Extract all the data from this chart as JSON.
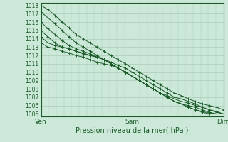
{
  "title": "Pression niveau de la mer( hPa )",
  "bg_color": "#cce8d8",
  "grid_color": "#aaccb8",
  "line_color": "#1a5c28",
  "ylim": [
    1005,
    1018
  ],
  "yticks": [
    1005,
    1006,
    1007,
    1008,
    1009,
    1010,
    1011,
    1012,
    1013,
    1014,
    1015,
    1016,
    1017,
    1018
  ],
  "xlim": [
    0,
    48
  ],
  "xtick_positions": [
    0,
    24,
    48
  ],
  "xtick_labels": [
    "Ven",
    "Sam",
    "Dim"
  ],
  "lines": [
    [
      1018.0,
      1017.5,
      1016.8,
      1016.0,
      1015.3,
      1014.5,
      1014.0,
      1013.5,
      1013.0,
      1012.5,
      1012.0,
      1011.5,
      1011.0,
      1010.5,
      1010.0,
      1009.5,
      1009.0,
      1008.5,
      1008.0,
      1007.5,
      1007.2,
      1006.8,
      1006.5,
      1006.2,
      1006.0,
      1005.8,
      1005.5
    ],
    [
      1017.2,
      1016.5,
      1015.8,
      1015.0,
      1014.2,
      1013.5,
      1013.0,
      1012.5,
      1012.0,
      1011.5,
      1011.2,
      1010.8,
      1010.5,
      1010.0,
      1009.5,
      1009.0,
      1008.5,
      1008.0,
      1007.5,
      1007.0,
      1006.8,
      1006.5,
      1006.2,
      1005.8,
      1005.5,
      1005.3,
      1005.0
    ],
    [
      1016.0,
      1015.2,
      1014.5,
      1013.8,
      1013.2,
      1012.8,
      1012.5,
      1012.2,
      1011.8,
      1011.5,
      1011.0,
      1010.5,
      1010.0,
      1009.5,
      1009.0,
      1008.5,
      1008.0,
      1007.5,
      1007.0,
      1006.5,
      1006.2,
      1005.8,
      1005.5,
      1005.3,
      1005.1,
      1005.0,
      1005.0
    ],
    [
      1015.0,
      1014.2,
      1013.5,
      1013.0,
      1012.8,
      1012.5,
      1012.3,
      1012.0,
      1011.8,
      1011.5,
      1011.0,
      1010.5,
      1010.0,
      1009.5,
      1009.0,
      1008.5,
      1008.0,
      1007.5,
      1007.0,
      1006.5,
      1006.2,
      1005.8,
      1005.5,
      1005.2,
      1005.0,
      1005.0,
      1005.0
    ],
    [
      1014.2,
      1013.5,
      1013.2,
      1013.0,
      1012.8,
      1012.5,
      1012.2,
      1012.0,
      1011.8,
      1011.5,
      1011.0,
      1010.5,
      1010.0,
      1009.5,
      1009.0,
      1008.5,
      1008.0,
      1007.5,
      1007.2,
      1006.8,
      1006.5,
      1006.3,
      1006.0,
      1005.8,
      1005.5,
      1005.2,
      1005.0
    ],
    [
      1013.5,
      1013.0,
      1012.8,
      1012.5,
      1012.3,
      1012.0,
      1011.8,
      1011.5,
      1011.2,
      1011.0,
      1010.8,
      1010.5,
      1010.0,
      1009.5,
      1009.0,
      1008.5,
      1008.0,
      1007.5,
      1007.0,
      1006.5,
      1006.2,
      1006.0,
      1005.8,
      1005.5,
      1005.2,
      1005.0,
      1005.0
    ]
  ]
}
